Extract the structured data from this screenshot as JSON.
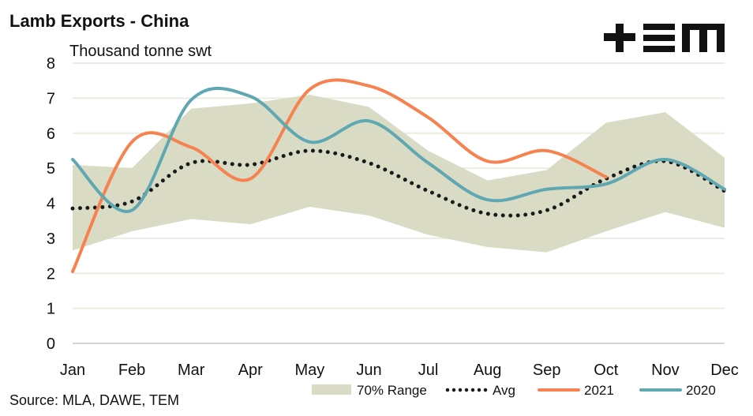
{
  "chart_data": {
    "type": "line",
    "title": "Lamb Exports - China",
    "ylabel": "Thousand tonne swt",
    "xlabel": "",
    "categories": [
      "Jan",
      "Feb",
      "Mar",
      "Apr",
      "May",
      "Jun",
      "Jul",
      "Aug",
      "Sep",
      "Oct",
      "Nov",
      "Dec"
    ],
    "ylim": [
      0,
      8
    ],
    "yticks": [
      0,
      1,
      2,
      3,
      4,
      5,
      6,
      7,
      8
    ],
    "grid": true,
    "legend_position": "bottom-right",
    "range": {
      "name": "70% Range",
      "color": "#d9dbc5",
      "upper": [
        5.1,
        5.0,
        6.7,
        6.85,
        7.1,
        6.75,
        5.5,
        4.65,
        4.95,
        6.3,
        6.6,
        5.3
      ],
      "lower": [
        2.65,
        3.2,
        3.55,
        3.4,
        3.9,
        3.65,
        3.1,
        2.75,
        2.6,
        3.2,
        3.75,
        3.3
      ]
    },
    "series": [
      {
        "name": "Avg",
        "color": "#1a1a1a",
        "style": "dotted",
        "values": [
          3.85,
          4.05,
          5.15,
          5.1,
          5.5,
          5.15,
          4.35,
          3.7,
          3.8,
          4.7,
          5.2,
          4.35
        ]
      },
      {
        "name": "2021",
        "color": "#f5824f",
        "style": "solid",
        "values": [
          2.05,
          5.75,
          5.6,
          4.7,
          7.25,
          7.35,
          6.45,
          5.2,
          5.5,
          4.75,
          null,
          null
        ]
      },
      {
        "name": "2020",
        "color": "#5fa8b2",
        "style": "solid",
        "values": [
          5.25,
          3.8,
          6.95,
          7.05,
          5.75,
          6.35,
          5.15,
          4.1,
          4.4,
          4.55,
          5.25,
          4.4
        ]
      }
    ]
  },
  "source": "Source: MLA, DAWE, TEM",
  "logo": {
    "text": "TEM"
  }
}
